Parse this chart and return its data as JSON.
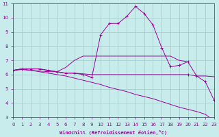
{
  "xlabel": "Windchill (Refroidissement éolien,°C)",
  "bg_color": "#c8ecec",
  "grid_color": "#a0c8c8",
  "line_color": "#990099",
  "xmin": 0,
  "xmax": 23,
  "ymin": 3,
  "ymax": 11,
  "lines": [
    {
      "x": [
        0,
        1,
        2,
        3,
        4,
        5,
        6,
        7,
        8,
        9,
        10,
        11,
        12,
        13,
        14,
        15,
        16,
        17,
        18,
        19,
        20,
        21,
        22,
        23
      ],
      "y": [
        6.3,
        6.4,
        6.4,
        6.4,
        6.3,
        6.2,
        6.1,
        6.1,
        6.0,
        5.8,
        8.8,
        9.6,
        9.6,
        10.1,
        10.8,
        10.3,
        9.5,
        7.9,
        6.55,
        6.65,
        6.9,
        5.9,
        5.5,
        4.2
      ],
      "marker": true
    },
    {
      "x": [
        0,
        1,
        2,
        3,
        4,
        5,
        6,
        7,
        8,
        9,
        10,
        11,
        12,
        13,
        14,
        15,
        16,
        17,
        18,
        19,
        20
      ],
      "y": [
        6.3,
        6.4,
        6.4,
        6.4,
        6.3,
        6.2,
        6.5,
        7.0,
        7.3,
        7.3,
        7.3,
        7.3,
        7.3,
        7.3,
        7.3,
        7.3,
        7.3,
        7.3,
        7.3,
        7.0,
        6.9
      ],
      "marker": false
    },
    {
      "x": [
        0,
        1,
        2,
        3,
        4,
        5,
        6,
        7,
        8,
        9,
        10,
        11,
        12,
        13,
        14,
        15,
        16,
        17,
        18,
        19,
        20,
        21,
        22,
        23
      ],
      "y": [
        6.3,
        6.4,
        6.3,
        6.25,
        6.2,
        6.2,
        6.1,
        6.1,
        6.05,
        6.0,
        6.0,
        6.0,
        6.0,
        6.0,
        6.0,
        6.0,
        6.0,
        6.0,
        6.0,
        6.0,
        6.0,
        5.9,
        5.9,
        5.85
      ],
      "marker": true
    },
    {
      "x": [
        0,
        1,
        2,
        3,
        4,
        5,
        6,
        7,
        8,
        9,
        10,
        11,
        12,
        13,
        14,
        15,
        16,
        17,
        18,
        19,
        20,
        21,
        22,
        23
      ],
      "y": [
        6.3,
        6.35,
        6.3,
        6.2,
        6.1,
        6.0,
        5.9,
        5.75,
        5.6,
        5.45,
        5.3,
        5.1,
        4.95,
        4.8,
        4.6,
        4.45,
        4.3,
        4.1,
        3.9,
        3.7,
        3.55,
        3.4,
        3.2,
        2.75
      ],
      "marker": false
    }
  ]
}
